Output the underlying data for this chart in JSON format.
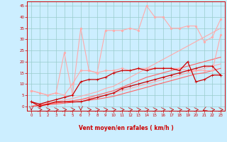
{
  "xlabel": "Vent moyen/en rafales ( km/h )",
  "bg_color": "#cceeff",
  "grid_color": "#99cccc",
  "x_ticks": [
    0,
    1,
    2,
    3,
    4,
    5,
    6,
    7,
    8,
    9,
    10,
    11,
    12,
    13,
    14,
    15,
    16,
    17,
    18,
    19,
    20,
    21,
    22,
    23
  ],
  "y_ticks": [
    0,
    5,
    10,
    15,
    20,
    25,
    30,
    35,
    40,
    45
  ],
  "ylim": [
    -2,
    47
  ],
  "xlim": [
    -0.5,
    23.5
  ],
  "series": [
    {
      "x": [
        0,
        1,
        2,
        3,
        4,
        5,
        6,
        7,
        8,
        9,
        10,
        11,
        12,
        13,
        14,
        15,
        16,
        17,
        18,
        19,
        20,
        21,
        22,
        23
      ],
      "y": [
        0,
        0.5,
        1,
        1.5,
        2,
        2.5,
        3,
        3.5,
        4,
        5,
        6,
        7,
        8,
        9,
        10,
        11,
        12,
        13,
        14,
        15,
        16,
        17,
        18,
        19
      ],
      "color": "#ffaaaa",
      "lw": 0.8,
      "marker": null,
      "alpha": 1.0
    },
    {
      "x": [
        0,
        1,
        2,
        3,
        4,
        5,
        6,
        7,
        8,
        9,
        10,
        11,
        12,
        13,
        14,
        15,
        16,
        17,
        18,
        19,
        20,
        21,
        22,
        23
      ],
      "y": [
        0,
        0.7,
        1.4,
        2.1,
        2.8,
        3.5,
        4.5,
        5.5,
        6.5,
        8,
        9,
        11,
        13,
        15,
        17,
        19,
        21,
        23,
        25,
        27,
        29,
        31,
        33,
        35
      ],
      "color": "#ffaaaa",
      "lw": 0.8,
      "marker": null,
      "alpha": 1.0
    },
    {
      "x": [
        0,
        1,
        2,
        3,
        4,
        5,
        6,
        7,
        8,
        9,
        10,
        11,
        12,
        13,
        14,
        15,
        16,
        17,
        18,
        19,
        20,
        21,
        22,
        23
      ],
      "y": [
        0,
        0.3,
        0.7,
        1,
        1.4,
        1.8,
        2.2,
        2.7,
        3.2,
        3.8,
        4.5,
        5.5,
        6.5,
        7.5,
        8.5,
        9.5,
        10.5,
        11.5,
        12.5,
        13.5,
        14.5,
        15,
        16,
        17
      ],
      "color": "#ff6666",
      "lw": 0.8,
      "marker": null,
      "alpha": 1.0
    },
    {
      "x": [
        0,
        1,
        2,
        3,
        4,
        5,
        6,
        7,
        8,
        9,
        10,
        11,
        12,
        13,
        14,
        15,
        16,
        17,
        18,
        19,
        20,
        21,
        22,
        23
      ],
      "y": [
        0,
        0.5,
        1,
        1.5,
        2,
        2.5,
        3,
        4,
        5,
        6,
        7,
        8.5,
        10,
        11.5,
        13,
        14,
        15,
        16,
        17,
        18,
        19,
        20,
        21,
        22
      ],
      "color": "#ff6666",
      "lw": 0.8,
      "marker": null,
      "alpha": 1.0
    },
    {
      "x": [
        0,
        1,
        2,
        3,
        4,
        5,
        6,
        7,
        8,
        9,
        10,
        11,
        12,
        13,
        14,
        15,
        16,
        17,
        18,
        19,
        20,
        21,
        22,
        23
      ],
      "y": [
        7,
        6,
        5,
        6,
        24,
        5,
        35,
        16,
        15,
        34,
        34,
        34,
        35,
        34,
        45,
        40,
        40,
        35,
        35,
        36,
        36,
        29,
        31,
        39
      ],
      "color": "#ffaaaa",
      "lw": 0.8,
      "marker": "o",
      "markersize": 1.8,
      "alpha": 1.0
    },
    {
      "x": [
        0,
        1,
        2,
        3,
        4,
        5,
        6,
        7,
        8,
        9,
        10,
        11,
        12,
        13,
        14,
        15,
        16,
        17,
        18,
        19,
        20,
        21,
        22,
        23
      ],
      "y": [
        7,
        6,
        5,
        6,
        5,
        10,
        16,
        16,
        15,
        16,
        16,
        17,
        16,
        17,
        17,
        17,
        17,
        17,
        17,
        16,
        16,
        16,
        16,
        32
      ],
      "color": "#ffaaaa",
      "lw": 0.8,
      "marker": "o",
      "markersize": 1.8,
      "alpha": 1.0
    },
    {
      "x": [
        0,
        1,
        2,
        3,
        4,
        5,
        6,
        7,
        8,
        9,
        10,
        11,
        12,
        13,
        14,
        15,
        16,
        17,
        18,
        19,
        20,
        21,
        22,
        23
      ],
      "y": [
        2,
        1,
        2,
        3,
        4,
        5,
        11,
        12,
        12,
        13,
        15,
        16,
        16,
        17,
        16,
        17,
        17,
        17,
        16,
        20,
        11,
        12,
        14,
        14
      ],
      "color": "#cc0000",
      "lw": 0.9,
      "marker": "+",
      "markersize": 3,
      "alpha": 1.0
    },
    {
      "x": [
        0,
        1,
        2,
        3,
        4,
        5,
        6,
        7,
        8,
        9,
        10,
        11,
        12,
        13,
        14,
        15,
        16,
        17,
        18,
        19,
        20,
        21,
        22,
        23
      ],
      "y": [
        2,
        0,
        1,
        2,
        2,
        2,
        2,
        3,
        4,
        5,
        6,
        8,
        9,
        10,
        11,
        12,
        13,
        14,
        15,
        16,
        17,
        18,
        18,
        14
      ],
      "color": "#cc0000",
      "lw": 0.9,
      "marker": "+",
      "markersize": 3,
      "alpha": 1.0
    }
  ]
}
